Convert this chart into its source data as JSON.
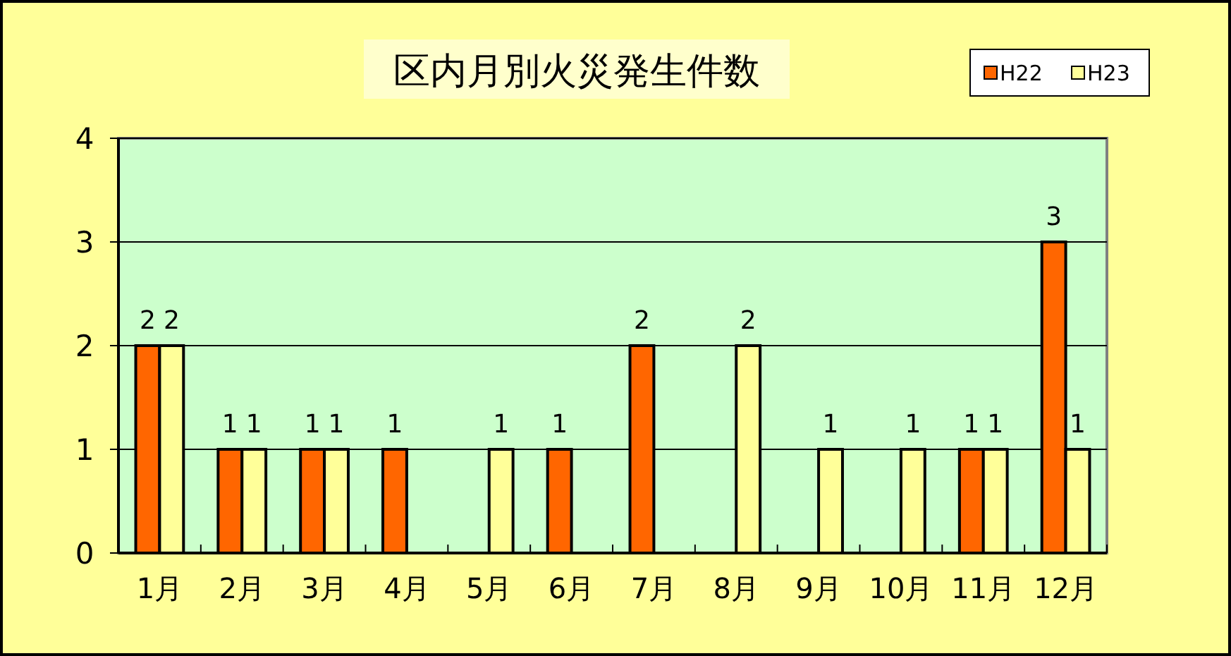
{
  "chart_data": {
    "type": "bar",
    "title": "区内月別火災発生件数",
    "categories": [
      "1月",
      "2月",
      "3月",
      "4月",
      "5月",
      "6月",
      "7月",
      "8月",
      "9月",
      "10月",
      "11月",
      "12月"
    ],
    "series": [
      {
        "name": "H22",
        "color": "#ff6600",
        "values": [
          2,
          1,
          1,
          1,
          0,
          1,
          2,
          0,
          0,
          0,
          1,
          3
        ],
        "value_labels": [
          "2",
          "1",
          "1",
          "1",
          null,
          "1",
          "2",
          null,
          null,
          null,
          "1",
          "3"
        ]
      },
      {
        "name": "H23",
        "color": "#ffff99",
        "values": [
          2,
          1,
          1,
          0,
          1,
          0,
          0,
          2,
          1,
          1,
          1,
          1
        ],
        "value_labels": [
          "2",
          "1",
          "1",
          null,
          "1",
          null,
          null,
          "2",
          "1",
          "1",
          "1",
          "1"
        ]
      }
    ],
    "ylim": [
      0,
      4
    ],
    "yticks": [
      0,
      1,
      2,
      3,
      4
    ],
    "grid": "y",
    "legend": "top right"
  }
}
